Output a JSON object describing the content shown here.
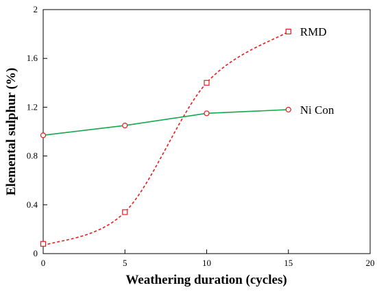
{
  "chart_data": {
    "type": "line",
    "xlabel": "Weathering duration (cycles)",
    "ylabel": "Elemental sulphur (%)",
    "xlim": [
      0,
      20
    ],
    "ylim": [
      0,
      2
    ],
    "xticks": [
      "0",
      "5",
      "10",
      "15",
      "20"
    ],
    "yticks": [
      "0",
      "0.4",
      "0.8",
      "1.2",
      "1.6",
      "2"
    ],
    "grid": false,
    "series": [
      {
        "name": "RMD",
        "x": [
          0,
          5,
          10,
          15
        ],
        "y": [
          0.08,
          0.34,
          1.4,
          1.82
        ],
        "marker": "square",
        "line_style": "dashed",
        "color": "#e8191b"
      },
      {
        "name": "Ni Con",
        "x": [
          0,
          5,
          10,
          15
        ],
        "y": [
          0.97,
          1.05,
          1.15,
          1.18
        ],
        "marker": "circle",
        "line_style": "solid",
        "color": "#13a84a",
        "marker_color": "#e8191b"
      }
    ]
  }
}
